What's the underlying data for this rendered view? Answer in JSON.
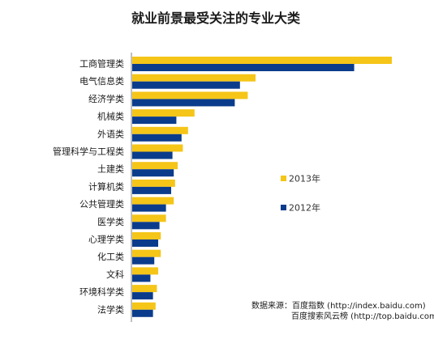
{
  "chart_data": {
    "type": "bar",
    "orientation": "horizontal",
    "title": "就业前景最受关注的专业大类",
    "categories": [
      "工商管理类",
      "电气信息类",
      "经济学类",
      "机械类",
      "外语类",
      "管理科学与工程类",
      "土建类",
      "计算机类",
      "公共管理类",
      "医学类",
      "心理学类",
      "化工类",
      "文科",
      "环境科学类",
      "法学类"
    ],
    "series": [
      {
        "name": "2013年",
        "color": "#F5C518",
        "values": [
          100,
          47.5,
          44.5,
          24,
          21.5,
          19.5,
          17.5,
          16.5,
          16,
          13,
          11,
          11,
          10,
          9.5,
          9
        ]
      },
      {
        "name": "2012年",
        "color": "#0B3C8C",
        "values": [
          85.5,
          41.5,
          39.5,
          17,
          19,
          15.5,
          16,
          15,
          13,
          10.5,
          10,
          8.5,
          7,
          8,
          8
        ]
      }
    ],
    "xlim": [
      0,
      100
    ],
    "grid": false,
    "legend_position": "right"
  },
  "source": {
    "line1": "数据来源：百度指数 (http://index.baidu.com)",
    "line2": "百度搜索风云榜 (http://top.baidu.com)"
  }
}
